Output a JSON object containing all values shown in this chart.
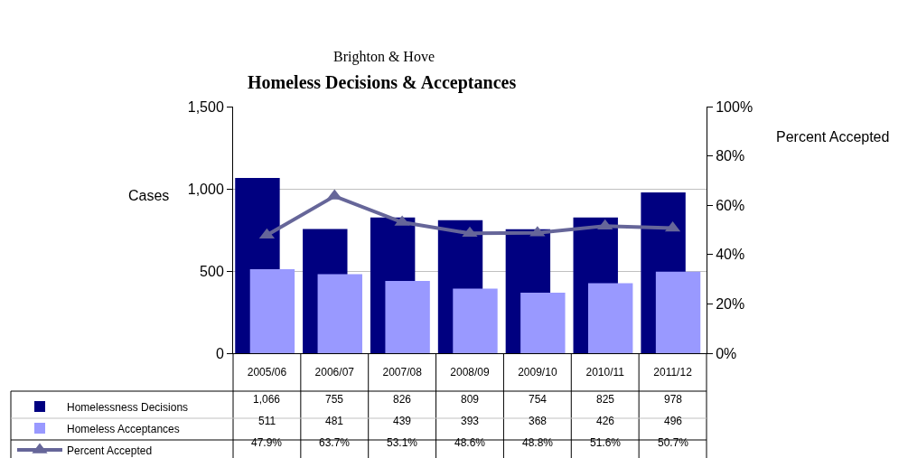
{
  "chart_data": {
    "type": "bar",
    "subtitle": "Brighton & Hove",
    "title": "Homeless Decisions & Acceptances",
    "ylabel": "Cases",
    "y2label": "Percent Accepted",
    "categories": [
      "2005/06",
      "2006/07",
      "2007/08",
      "2008/09",
      "2009/10",
      "2010/11",
      "2011/12"
    ],
    "series": [
      {
        "name": "Homelessness Decisions",
        "color": "#000080",
        "values": [
          1066,
          755,
          826,
          809,
          754,
          825,
          978
        ],
        "value_labels": [
          "1,066",
          "755",
          "826",
          "809",
          "754",
          "825",
          "978"
        ]
      },
      {
        "name": "Homeless Acceptances",
        "color": "#9999ff",
        "values": [
          511,
          481,
          439,
          393,
          368,
          426,
          496
        ],
        "value_labels": [
          "511",
          "481",
          "439",
          "393",
          "368",
          "426",
          "496"
        ]
      },
      {
        "name": "Percent Accepted",
        "type": "line",
        "axis": "y2",
        "marker": "triangle",
        "color": "#666699",
        "values": [
          47.9,
          63.7,
          53.1,
          48.6,
          48.8,
          51.6,
          50.7
        ],
        "value_labels": [
          "47.9%",
          "63.7%",
          "53.1%",
          "48.6%",
          "48.8%",
          "51.6%",
          "50.7%"
        ]
      }
    ],
    "ylim": [
      0,
      1500
    ],
    "yticks": [
      0,
      500,
      {
        "value": 1000,
        "label": "1,000"
      },
      {
        "value": 1500,
        "label": "1,500"
      }
    ],
    "y2lim": [
      0,
      100
    ],
    "y2ticks": [
      {
        "value": 0,
        "label": "0%"
      },
      {
        "value": 20,
        "label": "20%"
      },
      {
        "value": 40,
        "label": "40%"
      },
      {
        "value": 60,
        "label": "60%"
      },
      {
        "value": 80,
        "label": "80%"
      },
      {
        "value": 100,
        "label": "100%"
      }
    ],
    "grid": "y",
    "legend": "bottom left"
  }
}
